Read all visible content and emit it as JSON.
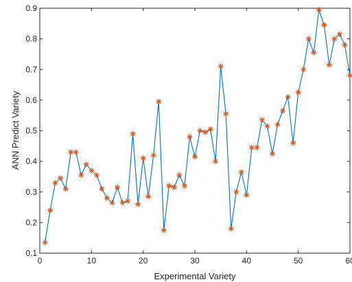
{
  "chart_data": {
    "type": "line",
    "title": "",
    "xlabel": "Experimental Variety",
    "ylabel": "ANN Predict Variety",
    "xlim": [
      0,
      60
    ],
    "ylim": [
      0.1,
      0.9
    ],
    "xticks": [
      0,
      10,
      20,
      30,
      40,
      50,
      60
    ],
    "xtick_labels": [
      "0",
      "10",
      "20",
      "30",
      "40",
      "50",
      "60"
    ],
    "yticks": [
      0.1,
      0.2,
      0.3,
      0.4,
      0.5,
      0.6,
      0.7,
      0.8,
      0.9
    ],
    "ytick_labels": [
      "0.1",
      "0.2",
      "0.3",
      "0.4",
      "0.5",
      "0.6",
      "0.7",
      "0.8",
      "0.9"
    ],
    "grid": false,
    "legend": "none",
    "line_color": "#0072bd",
    "marker_color": "#d95319",
    "marker": "asterisk",
    "series": [
      {
        "x": [
          1,
          2,
          3,
          4,
          5,
          6,
          7,
          8,
          9,
          10,
          11,
          12,
          13,
          14,
          15,
          16,
          17,
          18,
          19,
          20,
          21,
          22,
          23,
          24,
          25,
          26,
          27,
          28,
          29,
          30,
          31,
          32,
          33,
          34,
          35,
          36,
          37,
          38,
          39,
          40,
          41,
          42,
          43,
          44,
          45,
          46,
          47,
          48,
          49,
          50,
          51,
          52,
          53,
          54,
          55,
          56,
          57,
          58,
          59,
          60
        ],
        "values": [
          0.135,
          0.24,
          0.33,
          0.345,
          0.31,
          0.43,
          0.43,
          0.355,
          0.39,
          0.37,
          0.355,
          0.31,
          0.28,
          0.265,
          0.315,
          0.265,
          0.27,
          0.49,
          0.26,
          0.41,
          0.285,
          0.42,
          0.595,
          0.175,
          0.32,
          0.315,
          0.355,
          0.32,
          0.48,
          0.415,
          0.5,
          0.495,
          0.505,
          0.4,
          0.71,
          0.555,
          0.18,
          0.3,
          0.365,
          0.29,
          0.445,
          0.445,
          0.535,
          0.515,
          0.425,
          0.52,
          0.565,
          0.61,
          0.46,
          0.625,
          0.7,
          0.8,
          0.755,
          0.895,
          0.845,
          0.715,
          0.8,
          0.815,
          0.78,
          0.68
        ]
      }
    ]
  }
}
